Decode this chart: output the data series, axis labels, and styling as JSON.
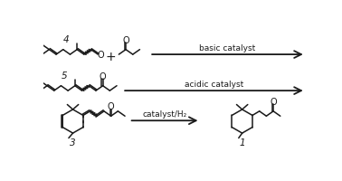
{
  "background_color": "#ffffff",
  "line_color": "#1a1a1a",
  "row1_arrow_label": "basic catalyst",
  "row2_arrow_label": "acidic catalyst",
  "row3_arrow_label": "catalyst/H₂",
  "label4": "4",
  "label5": "5",
  "label3": "3",
  "label1": "1"
}
